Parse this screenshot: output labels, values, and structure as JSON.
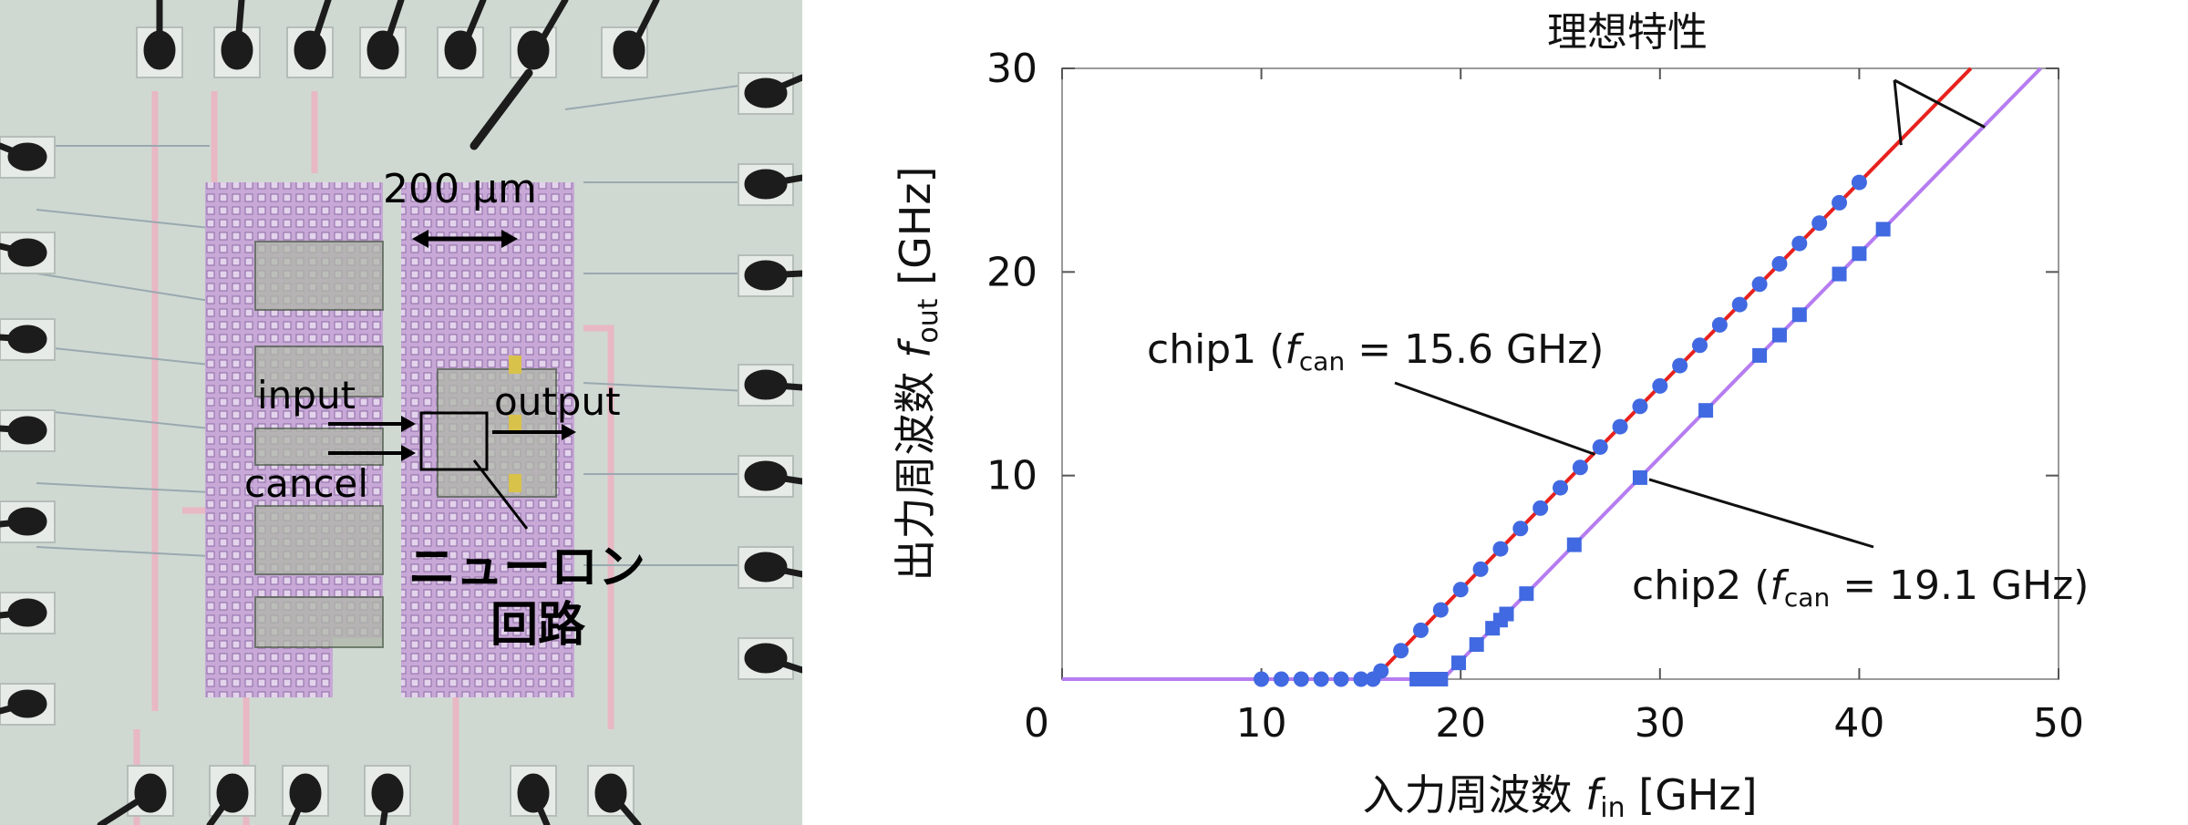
{
  "micrograph": {
    "scale_bar": "200 µm",
    "input_label": "input",
    "cancel_label": "cancel",
    "output_label": "output",
    "neuron_line1": "ニューロン",
    "neuron_line2": "回路"
  },
  "chart_data": {
    "type": "scatter",
    "title": "理想特性",
    "xlabel_prefix": "入力周波数 ",
    "xlabel_var": "f",
    "xlabel_sub": "in",
    "xlabel_unit": " [GHz]",
    "ylabel_prefix": "出力周波数  ",
    "ylabel_var": "f",
    "ylabel_sub": "out",
    "ylabel_unit": "  [GHz]",
    "xlim": [
      0,
      50
    ],
    "ylim": [
      0,
      30
    ],
    "xticks": [
      0,
      10,
      20,
      30,
      40,
      50
    ],
    "yticks": [
      10,
      20,
      30
    ],
    "series": [
      {
        "name_prefix": "chip1 (",
        "name_var": "f",
        "name_sub": "can",
        "name_suffix": " = 15.6 GHz)",
        "color": "#4169e1",
        "line_color": "#e8211d",
        "marker": "circle",
        "threshold": 15.6,
        "points": [
          [
            10,
            0
          ],
          [
            11,
            0
          ],
          [
            12,
            0
          ],
          [
            13,
            0
          ],
          [
            14,
            0
          ],
          [
            15,
            0
          ],
          [
            15.6,
            0
          ],
          [
            16.0,
            0.4
          ],
          [
            17,
            1.4
          ],
          [
            18,
            2.4
          ],
          [
            19,
            3.4
          ],
          [
            20,
            4.4
          ],
          [
            21,
            5.4
          ],
          [
            22,
            6.4
          ],
          [
            23,
            7.4
          ],
          [
            24,
            8.4
          ],
          [
            25,
            9.4
          ],
          [
            26,
            10.4
          ],
          [
            27,
            11.4
          ],
          [
            28,
            12.4
          ],
          [
            29,
            13.4
          ],
          [
            30,
            14.4
          ],
          [
            31,
            15.4
          ],
          [
            32,
            16.4
          ],
          [
            33,
            17.4
          ],
          [
            34,
            18.4
          ],
          [
            35,
            19.4
          ],
          [
            36,
            20.4
          ],
          [
            37,
            21.4
          ],
          [
            38,
            22.4
          ],
          [
            39,
            23.4
          ],
          [
            40,
            24.4
          ]
        ]
      },
      {
        "name_prefix": "chip2 (",
        "name_var": "f",
        "name_sub": "can",
        "name_suffix": " = 19.1 GHz)",
        "color": "#4169e1",
        "line_color": "#b67cf0",
        "marker": "square",
        "threshold": 19.1,
        "points": [
          [
            17.8,
            0
          ],
          [
            18.4,
            0
          ],
          [
            19.0,
            0
          ],
          [
            19.9,
            0.8
          ],
          [
            20.8,
            1.7
          ],
          [
            21.6,
            2.5
          ],
          [
            22.0,
            2.9
          ],
          [
            22.3,
            3.2
          ],
          [
            23.3,
            4.2
          ],
          [
            25.7,
            6.6
          ],
          [
            29.0,
            9.9
          ],
          [
            32.3,
            13.2
          ],
          [
            35.0,
            15.9
          ],
          [
            36.0,
            16.9
          ],
          [
            37.0,
            17.9
          ],
          [
            39.0,
            19.9
          ],
          [
            40.0,
            20.9
          ],
          [
            41.2,
            22.1
          ]
        ]
      }
    ]
  }
}
